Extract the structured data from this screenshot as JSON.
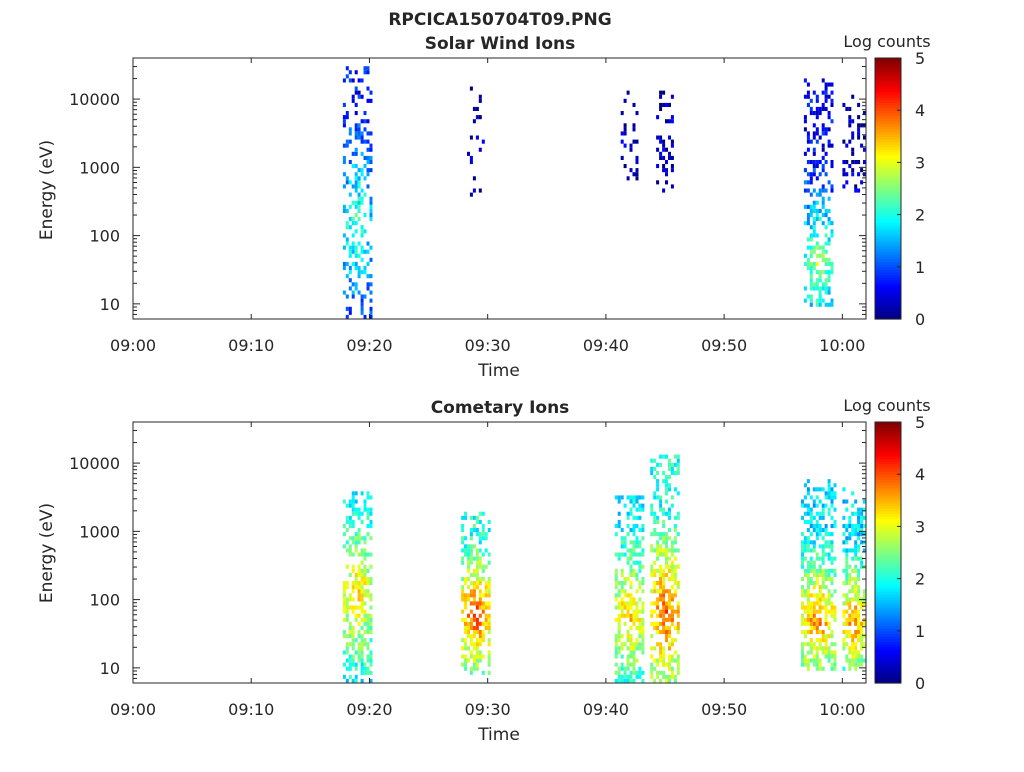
{
  "figure": {
    "title": "RPCICA150704T09.PNG"
  },
  "chart_data": [
    {
      "type": "heatmap",
      "title": "Solar Wind Ions",
      "xlabel": "Time",
      "ylabel": "Energy (eV)",
      "x_scale": "time",
      "y_scale": "log",
      "xlim": [
        "09:00",
        "10:02"
      ],
      "ylim": [
        6,
        40000
      ],
      "xticks": [
        "09:00",
        "09:10",
        "09:20",
        "09:30",
        "09:40",
        "09:50",
        "10:00"
      ],
      "yticks": [
        "10",
        "100",
        "1000",
        "10000"
      ],
      "colorbar": {
        "label": "Log counts",
        "range": [
          0,
          5
        ],
        "ticks": [
          "0",
          "1",
          "2",
          "3",
          "4",
          "5"
        ]
      },
      "grid": false,
      "bursts": [
        {
          "time": "09:19",
          "duration_min": 2.5,
          "energy_range": [
            6,
            30000
          ],
          "peak_energy": 150,
          "peak_log_counts": 2.3,
          "mean_log_counts": 0.7,
          "density": 0.5
        },
        {
          "time": "09:29",
          "duration_min": 1.5,
          "energy_range": [
            350,
            16000
          ],
          "peak_energy": 1500,
          "peak_log_counts": 0.4,
          "mean_log_counts": 0.1,
          "density": 0.15
        },
        {
          "time": "09:42",
          "duration_min": 1.5,
          "energy_range": [
            550,
            15000
          ],
          "peak_energy": 2000,
          "peak_log_counts": 0.4,
          "mean_log_counts": 0.15,
          "density": 0.22
        },
        {
          "time": "09:45",
          "duration_min": 1.5,
          "energy_range": [
            450,
            13000
          ],
          "peak_energy": 2500,
          "peak_log_counts": 0.4,
          "mean_log_counts": 0.15,
          "density": 0.3
        },
        {
          "time": "09:58",
          "duration_min": 2.5,
          "energy_range": [
            9,
            19000
          ],
          "peak_energy": 40,
          "peak_log_counts": 2.8,
          "mean_log_counts": 0.6,
          "density": 0.62
        },
        {
          "time": "10:01",
          "duration_min": 2.0,
          "energy_range": [
            400,
            12000
          ],
          "peak_energy": 1000,
          "peak_log_counts": 0.4,
          "mean_log_counts": 0.15,
          "density": 0.35
        }
      ]
    },
    {
      "type": "heatmap",
      "title": "Cometary Ions",
      "xlabel": "Time",
      "ylabel": "Energy (eV)",
      "x_scale": "time",
      "y_scale": "log",
      "xlim": [
        "09:00",
        "10:02"
      ],
      "ylim": [
        6,
        40000
      ],
      "xticks": [
        "09:00",
        "09:10",
        "09:20",
        "09:30",
        "09:40",
        "09:50",
        "10:00"
      ],
      "yticks": [
        "10",
        "100",
        "1000",
        "10000"
      ],
      "colorbar": {
        "label": "Log counts",
        "range": [
          0,
          5
        ],
        "ticks": [
          "0",
          "1",
          "2",
          "3",
          "4",
          "5"
        ]
      },
      "grid": false,
      "bursts": [
        {
          "time": "09:19",
          "duration_min": 2.5,
          "energy_range": [
            6,
            4000
          ],
          "peak_energy": 120,
          "peak_log_counts": 3.4,
          "mean_log_counts": 1.8,
          "density": 0.75
        },
        {
          "time": "09:29",
          "duration_min": 2.5,
          "energy_range": [
            8,
            1900
          ],
          "peak_energy": 60,
          "peak_log_counts": 4.1,
          "mean_log_counts": 2.0,
          "density": 0.75
        },
        {
          "time": "09:42",
          "duration_min": 2.5,
          "energy_range": [
            6,
            3500
          ],
          "peak_energy": 60,
          "peak_log_counts": 3.5,
          "mean_log_counts": 1.8,
          "density": 0.72
        },
        {
          "time": "09:45",
          "duration_min": 2.5,
          "energy_range": [
            6,
            13000
          ],
          "peak_energy": 60,
          "peak_log_counts": 4.0,
          "mean_log_counts": 2.0,
          "density": 0.75
        },
        {
          "time": "09:58",
          "duration_min": 3.0,
          "energy_range": [
            9,
            6000
          ],
          "peak_energy": 50,
          "peak_log_counts": 3.8,
          "mean_log_counts": 1.7,
          "density": 0.8
        },
        {
          "time": "10:01",
          "duration_min": 2.0,
          "energy_range": [
            9,
            4500
          ],
          "peak_energy": 45,
          "peak_log_counts": 3.8,
          "mean_log_counts": 1.7,
          "density": 0.78
        }
      ]
    }
  ]
}
